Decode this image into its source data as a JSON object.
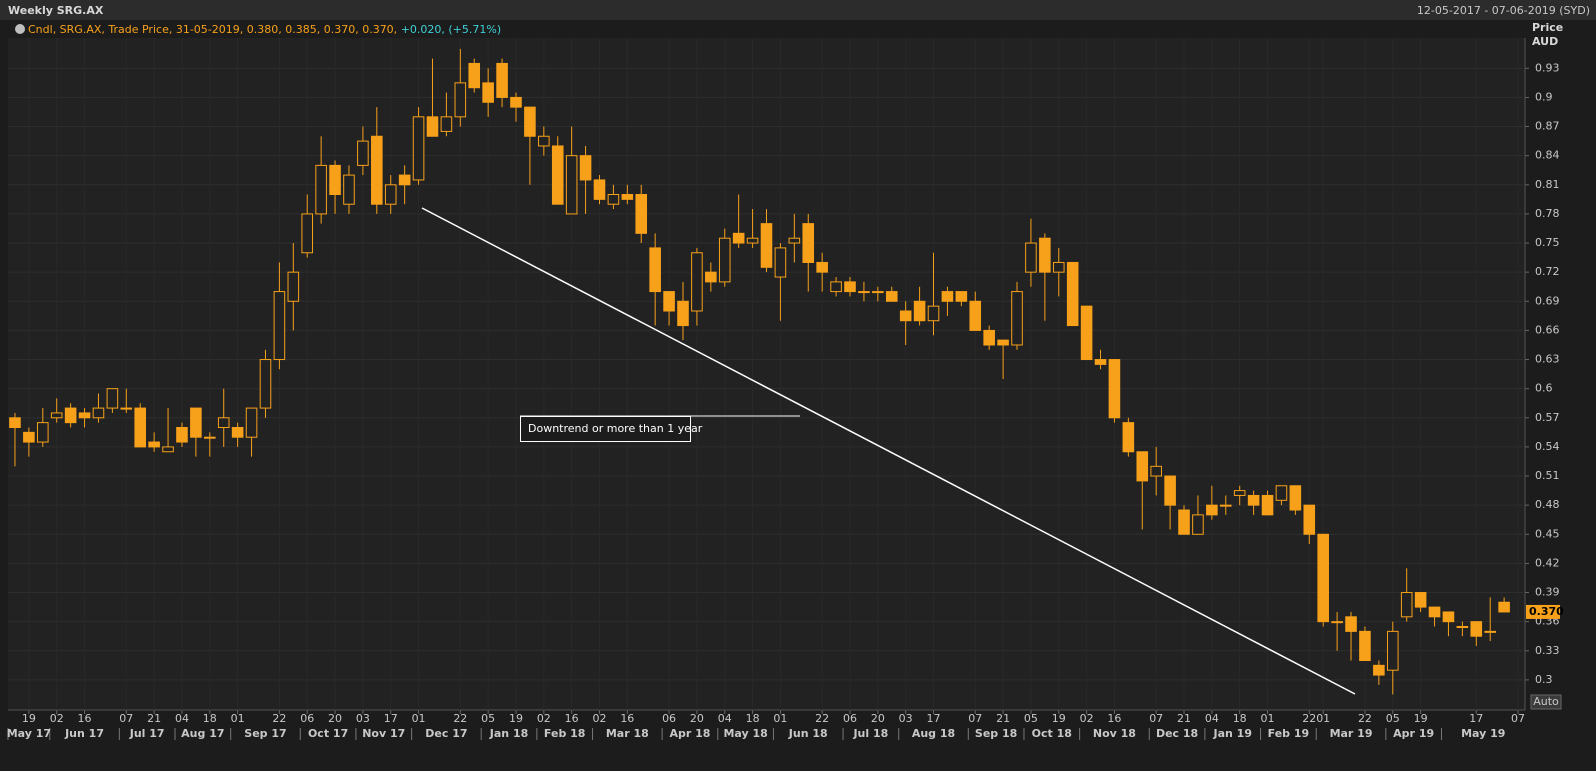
{
  "chart_data": {
    "type": "candlestick",
    "title": "Weekly SRG.AX",
    "date_range": "12-05-2017 - 07-06-2019 (SYD)",
    "legend": {
      "text": "Cndl, SRG.AX, Trade Price, 31-05-2019, 0.380, 0.385, 0.370, 0.370, ",
      "change": "+0.020, (+5.71%)"
    },
    "y_axis_title": [
      "Price",
      "AUD"
    ],
    "scale_button": "Auto",
    "annotation": "Downtrend or more than 1 year",
    "last_label": "0.370",
    "color": "#f7a11a",
    "ylim": [
      0.269,
      0.954
    ],
    "yticks": [
      0.3,
      0.33,
      0.36,
      0.39,
      0.42,
      0.45,
      0.48,
      0.51,
      0.54,
      0.57,
      0.6,
      0.63,
      0.66,
      0.69,
      0.72,
      0.75,
      0.78,
      0.81,
      0.84,
      0.87,
      0.9,
      0.93
    ],
    "xlim": [
      -0.5,
      108.5
    ],
    "open": [
      0.57,
      0.555,
      0.545,
      0.57,
      0.58,
      0.575,
      0.57,
      0.58,
      0.58,
      0.58,
      0.545,
      0.535,
      0.56,
      0.58,
      0.55,
      0.56,
      0.56,
      0.55,
      0.58,
      0.63,
      0.69,
      0.74,
      0.78,
      0.83,
      0.79,
      0.83,
      0.86,
      0.79,
      0.82,
      0.815,
      0.88,
      0.865,
      0.88,
      0.935,
      0.915,
      0.935,
      0.9,
      0.89,
      0.85,
      0.85,
      0.78,
      0.84,
      0.815,
      0.79,
      0.8,
      0.8,
      0.745,
      0.7,
      0.69,
      0.68,
      0.72,
      0.71,
      0.76,
      0.75,
      0.77,
      0.715,
      0.75,
      0.77,
      0.73,
      0.7,
      0.71,
      0.7,
      0.7,
      0.7,
      0.68,
      0.69,
      0.67,
      0.7,
      0.7,
      0.69,
      0.66,
      0.65,
      0.645,
      0.72,
      0.755,
      0.72,
      0.73,
      0.685,
      0.63,
      0.63,
      0.565,
      0.535,
      0.51,
      0.51,
      0.475,
      0.45,
      0.48,
      0.48,
      0.49,
      0.49,
      0.49,
      0.485,
      0.5,
      0.48,
      0.45,
      0.36,
      0.365,
      0.35,
      0.315,
      0.31,
      0.365,
      0.39,
      0.375,
      0.37,
      0.355,
      0.36,
      0.35,
      0.38
    ],
    "high": [
      0.575,
      0.56,
      0.58,
      0.59,
      0.585,
      0.58,
      0.595,
      0.6,
      0.6,
      0.585,
      0.555,
      0.58,
      0.565,
      0.58,
      0.555,
      0.6,
      0.565,
      0.58,
      0.64,
      0.73,
      0.75,
      0.8,
      0.86,
      0.835,
      0.83,
      0.87,
      0.89,
      0.82,
      0.83,
      0.89,
      0.94,
      0.905,
      0.95,
      0.94,
      0.93,
      0.94,
      0.905,
      0.89,
      0.87,
      0.86,
      0.87,
      0.85,
      0.82,
      0.81,
      0.81,
      0.81,
      0.76,
      0.7,
      0.71,
      0.745,
      0.73,
      0.765,
      0.8,
      0.785,
      0.785,
      0.75,
      0.78,
      0.78,
      0.74,
      0.715,
      0.715,
      0.71,
      0.705,
      0.705,
      0.69,
      0.705,
      0.74,
      0.705,
      0.7,
      0.7,
      0.665,
      0.65,
      0.71,
      0.775,
      0.76,
      0.745,
      0.73,
      0.685,
      0.64,
      0.63,
      0.57,
      0.535,
      0.54,
      0.51,
      0.48,
      0.49,
      0.5,
      0.49,
      0.5,
      0.495,
      0.495,
      0.5,
      0.5,
      0.48,
      0.45,
      0.37,
      0.37,
      0.355,
      0.32,
      0.36,
      0.415,
      0.39,
      0.375,
      0.37,
      0.36,
      0.36,
      0.385,
      0.385
    ],
    "low": [
      0.52,
      0.53,
      0.54,
      0.565,
      0.56,
      0.56,
      0.565,
      0.575,
      0.575,
      0.54,
      0.535,
      0.535,
      0.54,
      0.53,
      0.53,
      0.54,
      0.54,
      0.53,
      0.57,
      0.62,
      0.66,
      0.735,
      0.77,
      0.78,
      0.78,
      0.82,
      0.78,
      0.78,
      0.79,
      0.81,
      0.86,
      0.86,
      0.87,
      0.905,
      0.88,
      0.89,
      0.875,
      0.81,
      0.84,
      0.79,
      0.78,
      0.78,
      0.79,
      0.785,
      0.79,
      0.75,
      0.665,
      0.665,
      0.65,
      0.665,
      0.7,
      0.705,
      0.745,
      0.745,
      0.72,
      0.67,
      0.73,
      0.7,
      0.7,
      0.695,
      0.695,
      0.69,
      0.69,
      0.69,
      0.645,
      0.665,
      0.655,
      0.675,
      0.685,
      0.66,
      0.64,
      0.61,
      0.64,
      0.705,
      0.67,
      0.695,
      0.665,
      0.63,
      0.62,
      0.565,
      0.53,
      0.455,
      0.49,
      0.455,
      0.45,
      0.45,
      0.465,
      0.47,
      0.48,
      0.47,
      0.47,
      0.48,
      0.47,
      0.44,
      0.355,
      0.33,
      0.32,
      0.32,
      0.295,
      0.285,
      0.36,
      0.37,
      0.355,
      0.345,
      0.345,
      0.335,
      0.34,
      0.37
    ],
    "close": [
      0.56,
      0.545,
      0.565,
      0.575,
      0.565,
      0.57,
      0.58,
      0.6,
      0.58,
      0.54,
      0.54,
      0.54,
      0.545,
      0.55,
      0.55,
      0.57,
      0.55,
      0.58,
      0.63,
      0.7,
      0.72,
      0.78,
      0.83,
      0.8,
      0.82,
      0.855,
      0.79,
      0.81,
      0.81,
      0.88,
      0.86,
      0.88,
      0.915,
      0.91,
      0.895,
      0.9,
      0.89,
      0.86,
      0.86,
      0.79,
      0.84,
      0.815,
      0.795,
      0.8,
      0.795,
      0.76,
      0.7,
      0.68,
      0.665,
      0.74,
      0.71,
      0.755,
      0.75,
      0.755,
      0.725,
      0.745,
      0.755,
      0.73,
      0.72,
      0.71,
      0.7,
      0.7,
      0.7,
      0.69,
      0.67,
      0.67,
      0.685,
      0.69,
      0.69,
      0.66,
      0.645,
      0.645,
      0.7,
      0.75,
      0.72,
      0.73,
      0.665,
      0.63,
      0.625,
      0.57,
      0.535,
      0.505,
      0.52,
      0.48,
      0.45,
      0.47,
      0.47,
      0.48,
      0.495,
      0.48,
      0.47,
      0.5,
      0.475,
      0.45,
      0.36,
      0.36,
      0.35,
      0.32,
      0.305,
      0.35,
      0.39,
      0.375,
      0.365,
      0.36,
      0.355,
      0.345,
      0.35,
      0.37
    ],
    "xticks": [
      {
        "value": 1,
        "label": "19"
      },
      {
        "value": 3,
        "label": "02"
      },
      {
        "value": 5,
        "label": "16"
      },
      {
        "value": 8,
        "label": "07"
      },
      {
        "value": 10,
        "label": "21"
      },
      {
        "value": 12,
        "label": "04"
      },
      {
        "value": 14,
        "label": "18"
      },
      {
        "value": 16,
        "label": "01"
      },
      {
        "value": 19,
        "label": "22"
      },
      {
        "value": 21,
        "label": "06"
      },
      {
        "value": 23,
        "label": "20"
      },
      {
        "value": 25,
        "label": "03"
      },
      {
        "value": 27,
        "label": "17"
      },
      {
        "value": 29,
        "label": "01"
      },
      {
        "value": 32,
        "label": "22"
      },
      {
        "value": 34,
        "label": "05"
      },
      {
        "value": 36,
        "label": "19"
      },
      {
        "value": 38,
        "label": "02"
      },
      {
        "value": 40,
        "label": "16"
      },
      {
        "value": 42,
        "label": "02"
      },
      {
        "value": 44,
        "label": "16"
      },
      {
        "value": 47,
        "label": "06"
      },
      {
        "value": 49,
        "label": "20"
      },
      {
        "value": 51,
        "label": "04"
      },
      {
        "value": 53,
        "label": "18"
      },
      {
        "value": 55,
        "label": "01"
      },
      {
        "value": 58,
        "label": "22"
      },
      {
        "value": 60,
        "label": "06"
      },
      {
        "value": 62,
        "label": "20"
      },
      {
        "value": 64,
        "label": "03"
      },
      {
        "value": 66,
        "label": "17"
      },
      {
        "value": 69,
        "label": "07"
      },
      {
        "value": 71,
        "label": "21"
      },
      {
        "value": 73,
        "label": "05"
      },
      {
        "value": 75,
        "label": "19"
      },
      {
        "value": 77,
        "label": "02"
      },
      {
        "value": 79,
        "label": "16"
      },
      {
        "value": 82,
        "label": "07"
      },
      {
        "value": 84,
        "label": "21"
      },
      {
        "value": 86,
        "label": "04"
      },
      {
        "value": 88,
        "label": "18"
      },
      {
        "value": 90,
        "label": "01"
      },
      {
        "value": 93,
        "label": "22"
      },
      {
        "value": 94,
        "label": "01"
      },
      {
        "value": 97,
        "label": "22"
      },
      {
        "value": 99,
        "label": "05"
      },
      {
        "value": 101,
        "label": "19"
      },
      {
        "value": 105,
        "label": "17"
      },
      {
        "value": 108,
        "label": "07"
      }
    ],
    "months": [
      {
        "value": 0,
        "label": "May 17"
      },
      {
        "value": 3,
        "label": "Jun 17"
      },
      {
        "value": 8,
        "label": "Jul 17"
      },
      {
        "value": 12,
        "label": "Aug 17"
      },
      {
        "value": 16,
        "label": "Sep 17"
      },
      {
        "value": 21,
        "label": "Oct 17"
      },
      {
        "value": 25,
        "label": "Nov 17"
      },
      {
        "value": 29,
        "label": "Dec 17"
      },
      {
        "value": 34,
        "label": "Jan 18"
      },
      {
        "value": 38,
        "label": "Feb 18"
      },
      {
        "value": 42,
        "label": "Mar 18"
      },
      {
        "value": 47,
        "label": "Apr 18"
      },
      {
        "value": 51,
        "label": "May 18"
      },
      {
        "value": 55,
        "label": "Jun 18"
      },
      {
        "value": 60,
        "label": "Jul 18"
      },
      {
        "value": 64,
        "label": "Aug 18"
      },
      {
        "value": 69,
        "label": "Sep 18"
      },
      {
        "value": 73,
        "label": "Oct 18"
      },
      {
        "value": 77,
        "label": "Nov 18"
      },
      {
        "value": 82,
        "label": "Dec 18"
      },
      {
        "value": 86,
        "label": "Jan 19"
      },
      {
        "value": 90,
        "label": "Feb 19"
      },
      {
        "value": 94,
        "label": "Mar 19"
      },
      {
        "value": 99,
        "label": "Apr 19"
      },
      {
        "value": 103,
        "label": "May 19"
      }
    ]
  }
}
